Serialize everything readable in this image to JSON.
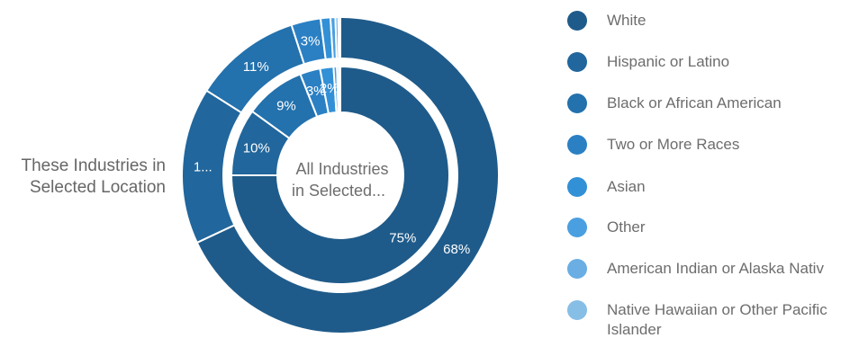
{
  "chart_data": {
    "type": "pie",
    "categories": [
      "White",
      "Hispanic or Latino",
      "Black or African American",
      "Two or More Races",
      "Asian",
      "Other",
      "American Indian or Alaska Nativ",
      "Native Hawaiian or Other Pacific Islander"
    ],
    "colors": [
      "#1f5b8a",
      "#21669c",
      "#2371ad",
      "#2b80c4",
      "#3290d6",
      "#4a9fe0",
      "#6aaee3",
      "#86bee6"
    ],
    "series": [
      {
        "name": "These Industries in Selected Location",
        "values": [
          68,
          16,
          11,
          3,
          1,
          0.5,
          0.3,
          0.2
        ],
        "labels": [
          "68%",
          "1...",
          "11%",
          "3%",
          "",
          "",
          "",
          ""
        ]
      },
      {
        "name": "All Industries in Selected...",
        "values": [
          75,
          10,
          9,
          3,
          2,
          0.5,
          0.3,
          0.2
        ],
        "labels": [
          "75%",
          "10%",
          "9%",
          "3%",
          "2%",
          "",
          "",
          ""
        ]
      }
    ]
  },
  "outer_ring_title": "These Industries in Selected Location",
  "center_title": [
    "All Industries",
    "in Selected..."
  ],
  "legend": [
    {
      "label": "White",
      "icon": "circle-marker",
      "color": "#1f5b8a"
    },
    {
      "label": "Hispanic or Latino",
      "icon": "circle-marker",
      "color": "#21669c"
    },
    {
      "label": "Black or African American",
      "icon": "circle-marker",
      "color": "#2371ad"
    },
    {
      "label": "Two or More Races",
      "icon": "circle-marker",
      "color": "#2b80c4"
    },
    {
      "label": "Asian",
      "icon": "circle-marker",
      "color": "#3290d6"
    },
    {
      "label": "Other",
      "icon": "circle-marker",
      "color": "#4a9fe0"
    },
    {
      "label": "American Indian or Alaska Nativ",
      "icon": "circle-marker",
      "color": "#6aaee3"
    },
    {
      "label": "Native Hawaiian or Other Pacific Islander",
      "icon": "circle-marker",
      "color": "#86bee6"
    }
  ]
}
